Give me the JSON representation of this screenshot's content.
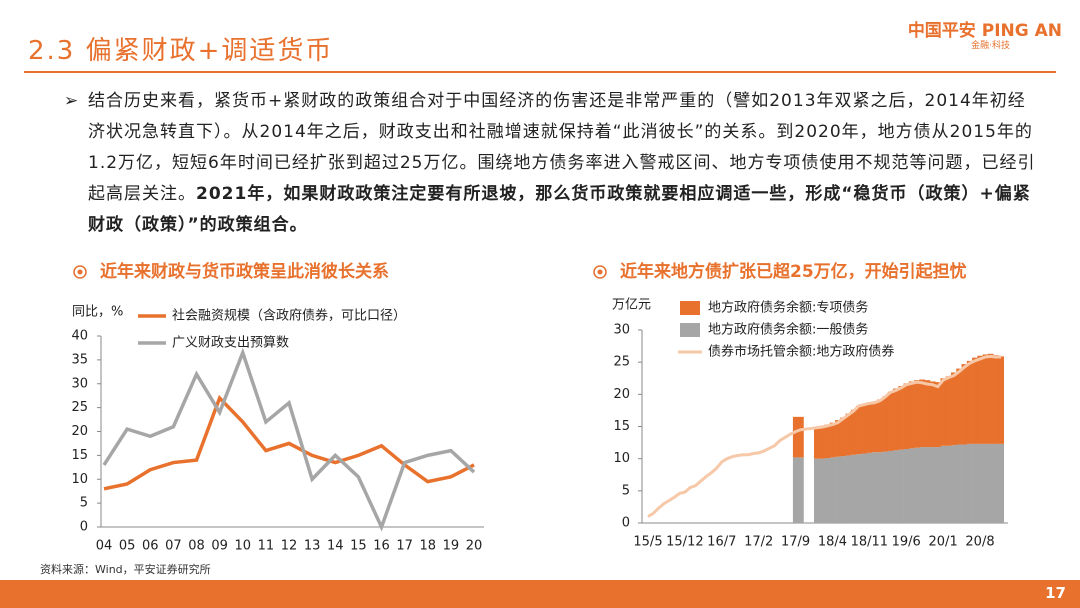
{
  "header": {
    "title": "2.3 偏紧财政+调适货币",
    "logo": "中国平安 PING AN",
    "logo_tagline": "金融·科技"
  },
  "bullet": {
    "text": "结合历史来看，紧货币+紧财政的政策组合对于中国经济的伤害还是非常严重的（譬如2013年双紧之后，2014年初经济状况急转直下）。从2014年之后，财政支出和社融增速就保持着“此消彼长”的关系。到2020年，地方债从2015年的1.2万亿，短短6年时间已经扩张到超过25万亿。围绕地方债务率进入警戒区间、地方专项债使用不规范等问题，已经引起高层关注。",
    "emphasis": "2021年，如果财政政策注定要有所退坡，那么货币政策就要相应调适一些，形成“稳货币（政策）+偏紧财政（政策）”的政策组合。"
  },
  "chart_data": [
    {
      "type": "line",
      "title": "近年来财政与货币政策呈此消彼长关系",
      "y_label": "同比，%",
      "categories": [
        "04",
        "05",
        "06",
        "07",
        "08",
        "09",
        "10",
        "11",
        "12",
        "13",
        "14",
        "15",
        "16",
        "17",
        "18",
        "19",
        "20"
      ],
      "series": [
        {
          "name": "社会融资规模（含政府债券，可比口径）",
          "color": "#e8712d",
          "values": [
            8,
            9,
            12,
            13.5,
            14,
            27,
            22,
            16,
            17.5,
            15,
            13.5,
            15,
            17,
            13,
            9.5,
            10.5,
            13
          ]
        },
        {
          "name": "广义财政支出预算数",
          "color": "#a6a6a6",
          "values": [
            13,
            20.5,
            19,
            21,
            32,
            24,
            36.5,
            22,
            26,
            10,
            15,
            10.5,
            0,
            13.5,
            15,
            16,
            11.5
          ]
        }
      ],
      "ylim": [
        0,
        40
      ],
      "yticks": [
        0,
        5,
        10,
        15,
        20,
        25,
        30,
        35,
        40
      ]
    },
    {
      "type": "bar",
      "stacked": true,
      "title": "近年来地方债扩张已超25万亿，开始引起担忧",
      "y_label": "万亿元",
      "categories": [
        "15/5",
        null,
        null,
        null,
        null,
        null,
        null,
        "15/12",
        null,
        null,
        null,
        null,
        null,
        null,
        "16/7",
        null,
        null,
        null,
        null,
        null,
        null,
        "17/2",
        null,
        null,
        null,
        null,
        null,
        null,
        "17/9",
        null,
        null,
        null,
        null,
        null,
        null,
        "18/4",
        null,
        null,
        null,
        null,
        null,
        null,
        "18/11",
        null,
        null,
        null,
        null,
        null,
        null,
        "19/6",
        null,
        null,
        null,
        null,
        null,
        null,
        "20/1",
        null,
        null,
        null,
        null,
        null,
        null,
        "20/8",
        null,
        null,
        null,
        null
      ],
      "series": [
        {
          "name": "地方政府债务余额:一般债务",
          "color": "#a6a6a6",
          "values": [
            null,
            null,
            null,
            null,
            null,
            null,
            null,
            null,
            null,
            null,
            null,
            null,
            null,
            null,
            null,
            null,
            null,
            null,
            null,
            null,
            null,
            null,
            null,
            null,
            null,
            null,
            null,
            null,
            10.2,
            10.2,
            null,
            null,
            10,
            10,
            10.1,
            10.2,
            10.3,
            10.4,
            10.5,
            10.6,
            10.7,
            10.8,
            10.9,
            11,
            11,
            11.1,
            11.2,
            11.3,
            11.4,
            11.5,
            11.6,
            11.7,
            11.8,
            11.8,
            11.8,
            11.8,
            12,
            12,
            12.1,
            12.2,
            12.2,
            12.3,
            12.3,
            12.3,
            12.3,
            12.3,
            12.3,
            12.3
          ]
        },
        {
          "name": "地方政府债务余额:专项债务",
          "color": "#e8712d",
          "values": [
            null,
            null,
            null,
            null,
            null,
            null,
            null,
            null,
            null,
            null,
            null,
            null,
            null,
            null,
            null,
            null,
            null,
            null,
            null,
            null,
            null,
            null,
            null,
            null,
            null,
            null,
            null,
            null,
            6.3,
            6.3,
            null,
            null,
            5,
            5.1,
            5.2,
            5.4,
            5.7,
            6,
            6.5,
            7,
            7.5,
            7.7,
            7.8,
            7.9,
            8.2,
            8.6,
            9.2,
            9.6,
            9.9,
            10.2,
            10.4,
            10.5,
            10.5,
            10.4,
            10.2,
            10.1,
            10.5,
            10.8,
            11.3,
            11.8,
            12.5,
            12.9,
            13.4,
            13.7,
            13.9,
            14,
            13.8,
            13.6
          ]
        },
        {
          "name": "债券市场托管余额:地方政府债券",
          "color": "#f6c8a8",
          "type": "line",
          "values": [
            1,
            1.5,
            2.3,
            3,
            3.5,
            4,
            4.6,
            4.8,
            5.5,
            5.8,
            6.5,
            7.2,
            7.8,
            8.5,
            9.5,
            10,
            10.3,
            10.5,
            10.6,
            10.6,
            10.8,
            10.9,
            11.2,
            11.6,
            12,
            12.8,
            13.3,
            13.8,
            14.2,
            14.5,
            14.6,
            14.7,
            14.8,
            14.9,
            15.1,
            15.3,
            15.6,
            16.2,
            16.8,
            17.4,
            18.2,
            18.4,
            18.6,
            18.7,
            19,
            19.6,
            20.3,
            20.6,
            21,
            21.5,
            21.7,
            21.9,
            21.8,
            21.6,
            21.5,
            21.2,
            22.2,
            22.6,
            22.9,
            23.5,
            24.2,
            24.8,
            25.2,
            25.5,
            25.8,
            25.9,
            25.8,
            25.8
          ]
        }
      ],
      "ylim": [
        0,
        30
      ],
      "yticks": [
        0,
        5,
        10,
        15,
        20,
        25,
        30
      ]
    }
  ],
  "source": "资料来源：Wind，平安证券研究所",
  "page_number": "17"
}
